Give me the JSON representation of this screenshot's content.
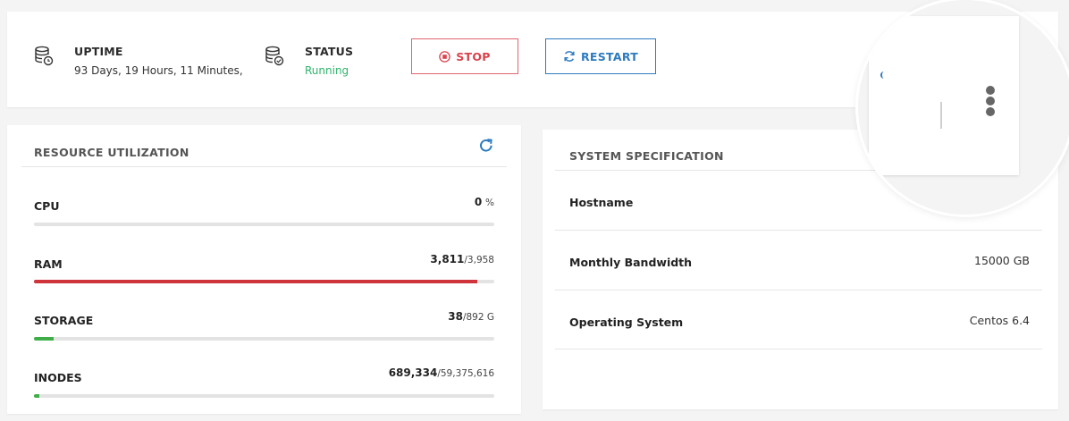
{
  "header": {
    "uptime": {
      "title": "UPTIME",
      "value": "93 Days, 19 Hours, 11 Minutes,",
      "icon": "database-clock-icon"
    },
    "status": {
      "title": "STATUS",
      "value": "Running",
      "value_color": "#2fb36b",
      "icon": "database-check-icon"
    },
    "stop_label": "STOP",
    "restart_label": "RESTART"
  },
  "resources": {
    "title": "RESOURCE UTILIZATION",
    "items": [
      {
        "label": "CPU",
        "used": "0",
        "total": "%",
        "fill": 0,
        "color": "#d9434d"
      },
      {
        "label": "RAM",
        "used": "3,811",
        "total": "/3,958",
        "fill": 0.963,
        "color": "#d0343b"
      },
      {
        "label": "STORAGE",
        "used": "38",
        "total": "/892 G",
        "fill": 0.043,
        "color": "#3fae49"
      },
      {
        "label": "INODES",
        "used": "689,334",
        "total": "/59,375,616",
        "fill": 0.012,
        "color": "#3fae49"
      }
    ]
  },
  "spec": {
    "title": "SYSTEM SPECIFICATION",
    "rows": [
      {
        "label": "Hostname",
        "value": ""
      },
      {
        "label": "Monthly Bandwidth",
        "value": "15000 GB"
      },
      {
        "label": "Operating System",
        "value": "Centos 6.4"
      }
    ]
  },
  "colors": {
    "accent": "#2d7bbf",
    "danger": "#d9434d",
    "success": "#2fb36b"
  }
}
